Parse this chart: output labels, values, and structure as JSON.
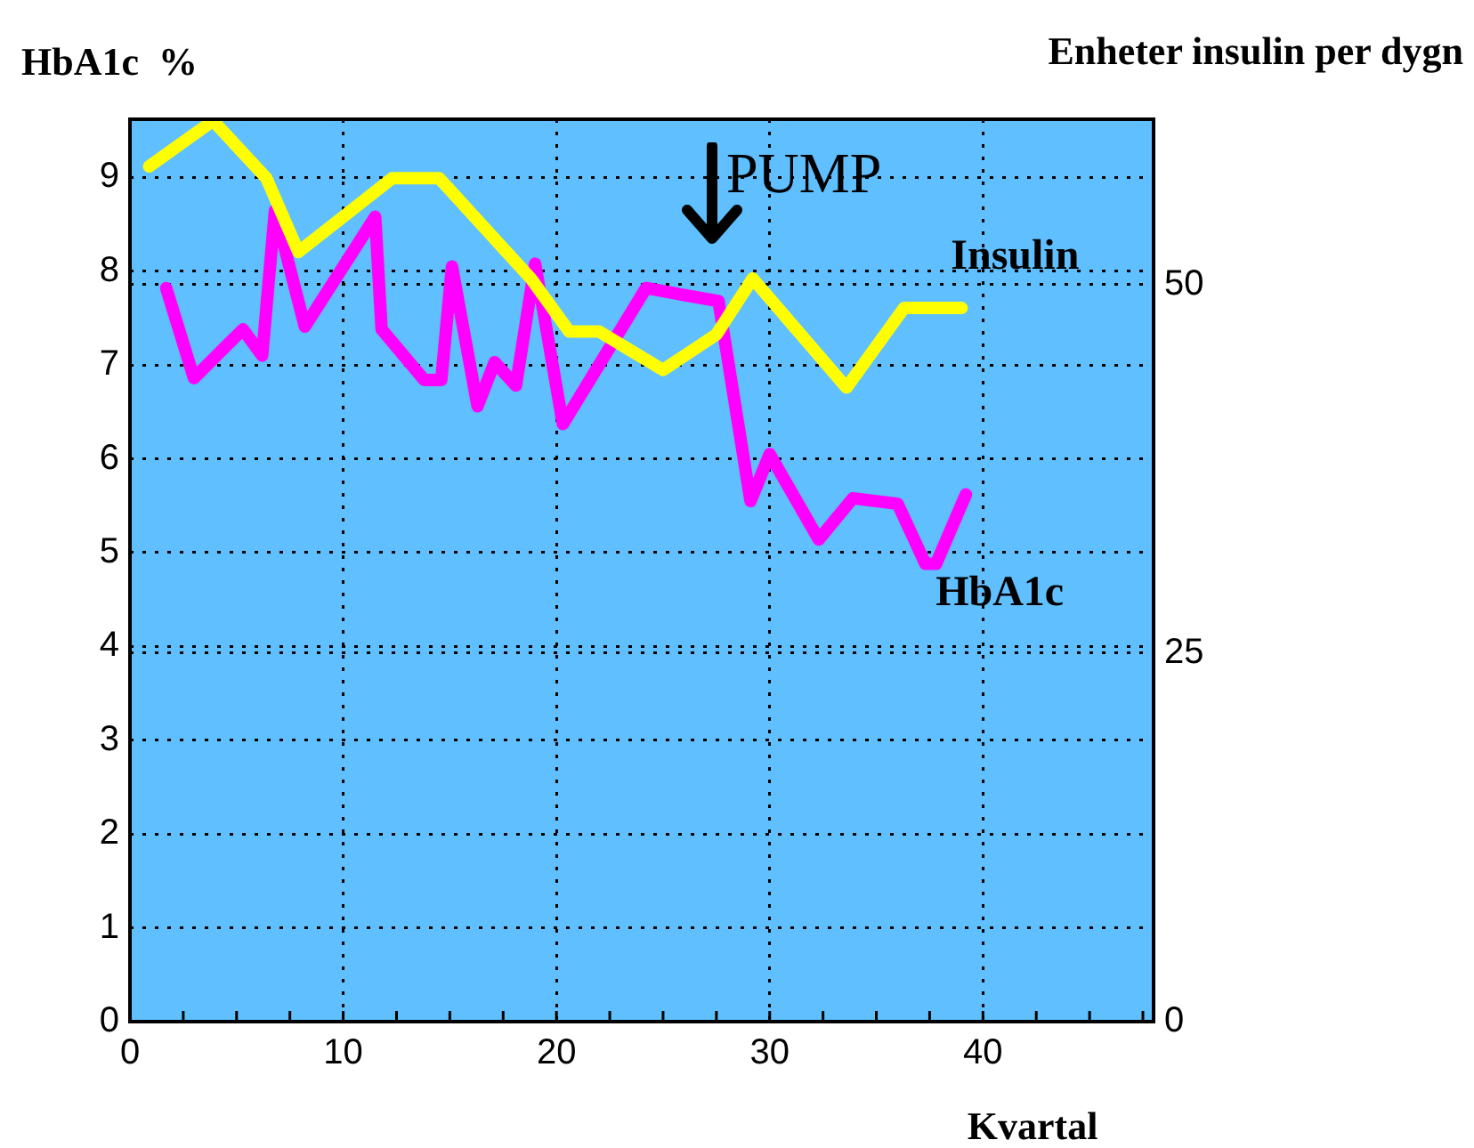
{
  "chart_data": {
    "type": "line",
    "ylabel": "HbA1c  %",
    "y2label": "Enheter insulin per dygn",
    "xlabel": "Kvartal",
    "xlim": [
      0,
      48
    ],
    "xticks": [
      0,
      10,
      20,
      30,
      40
    ],
    "ylim": [
      0,
      9.62
    ],
    "yticks": [
      0,
      1,
      2,
      3,
      4,
      5,
      6,
      7,
      8,
      9
    ],
    "y2lim": [
      0,
      61.2
    ],
    "y2ticks": [
      0,
      25,
      50
    ],
    "grid": true,
    "legend": false,
    "marker": "none",
    "line_style": "solid",
    "annotations": [
      "PUMP"
    ],
    "series": [
      {
        "name": "Insulin",
        "color": "#ffff00",
        "axis": "y2",
        "x": [
          0.9,
          3.9,
          6.4,
          7.9,
          12.3,
          14.5,
          18.8,
          20.6,
          22,
          25,
          27.5,
          29.2,
          33.6,
          36.3,
          39
        ],
        "values": [
          58,
          61.1,
          57.2,
          52.2,
          57.2,
          57.2,
          50.4,
          46.8,
          46.8,
          44.2,
          46.6,
          50.4,
          43,
          48.4,
          48.4
        ]
      },
      {
        "name": "HbA1c",
        "color": "#ff00ff",
        "axis": "y",
        "x": [
          1.7,
          3,
          5.3,
          6.2,
          6.8,
          8.2,
          11.5,
          11.8,
          13.8,
          14.6,
          15.1,
          16.3,
          17.1,
          18.1,
          19,
          20.3,
          24.2,
          27.6,
          29.1,
          30,
          32.3,
          33.9,
          36,
          37.3,
          37.8,
          39.2
        ],
        "values": [
          7.82,
          6.86,
          7.38,
          7.1,
          8.65,
          7.41,
          8.58,
          7.38,
          6.84,
          6.84,
          8.05,
          6.56,
          7.03,
          6.78,
          8.08,
          6.37,
          7.82,
          7.68,
          5.55,
          6.05,
          5.14,
          5.58,
          5.52,
          4.88,
          4.88,
          5.62
        ]
      }
    ]
  }
}
